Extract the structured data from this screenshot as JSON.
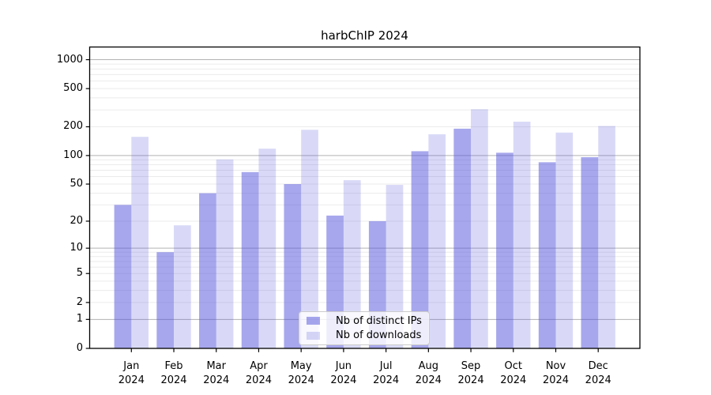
{
  "chart_data": {
    "type": "bar",
    "title": "harbChIP 2024",
    "categories": [
      "Jan 2024",
      "Feb 2024",
      "Mar 2024",
      "Apr 2024",
      "May 2024",
      "Jun 2024",
      "Jul 2024",
      "Aug 2024",
      "Sep 2024",
      "Oct 2024",
      "Nov 2024",
      "Dec 2024"
    ],
    "series": [
      {
        "name": "Nb of distinct IPs",
        "values": [
          30,
          9,
          40,
          67,
          50,
          23,
          20,
          111,
          191,
          107,
          85,
          96
        ]
      },
      {
        "name": "Nb of downloads",
        "values": [
          157,
          18,
          91,
          118,
          186,
          55,
          49,
          167,
          305,
          226,
          174,
          204
        ]
      }
    ],
    "xlabel": "",
    "ylabel": "",
    "yscale": "log1p",
    "ylim": [
      0,
      1350
    ],
    "yticks": [
      0,
      1,
      2,
      5,
      10,
      20,
      50,
      100,
      200,
      500,
      1000
    ],
    "major_gridline_values": [
      1,
      10,
      100,
      1000
    ],
    "grid": true,
    "legend_position": "inside-bottom-center"
  },
  "colors": {
    "bar_distinct_ips": "rgba(80,80,220,0.5)",
    "bar_downloads": "rgba(80,80,220,0.22)",
    "major_grid": "#b3b3b3",
    "minor_grid": "#ebebeb",
    "axis": "#000000",
    "text": "#000000",
    "background": "#ffffff",
    "legend_border": "#cccccc"
  }
}
